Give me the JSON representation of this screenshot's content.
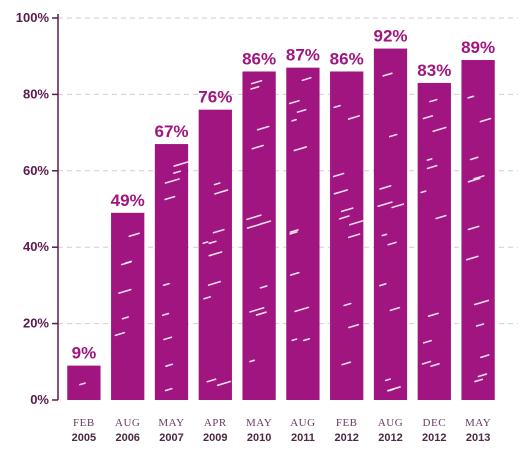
{
  "chart_data": {
    "type": "bar",
    "categories": [
      [
        "FEB",
        "2005"
      ],
      [
        "AUG",
        "2006"
      ],
      [
        "MAY",
        "2007"
      ],
      [
        "APR",
        "2009"
      ],
      [
        "MAY",
        "2010"
      ],
      [
        "AUG",
        "2011"
      ],
      [
        "FEB",
        "2012"
      ],
      [
        "AUG",
        "2012"
      ],
      [
        "DEC",
        "2012"
      ],
      [
        "MAY",
        "2013"
      ]
    ],
    "values": [
      9,
      49,
      67,
      76,
      86,
      87,
      86,
      92,
      83,
      89
    ],
    "data_labels": [
      "9%",
      "49%",
      "67%",
      "76%",
      "86%",
      "87%",
      "86%",
      "92%",
      "83%",
      "89%"
    ],
    "yticks": [
      0,
      20,
      40,
      60,
      80,
      100
    ],
    "ytick_labels": [
      "0%",
      "20%",
      "40%",
      "60%",
      "80%",
      "100%"
    ],
    "ylim": [
      0,
      100
    ],
    "grid": true,
    "colors": {
      "bar": "#a0157f",
      "label": "#a0157f",
      "axis": "#5a1a4e"
    }
  }
}
